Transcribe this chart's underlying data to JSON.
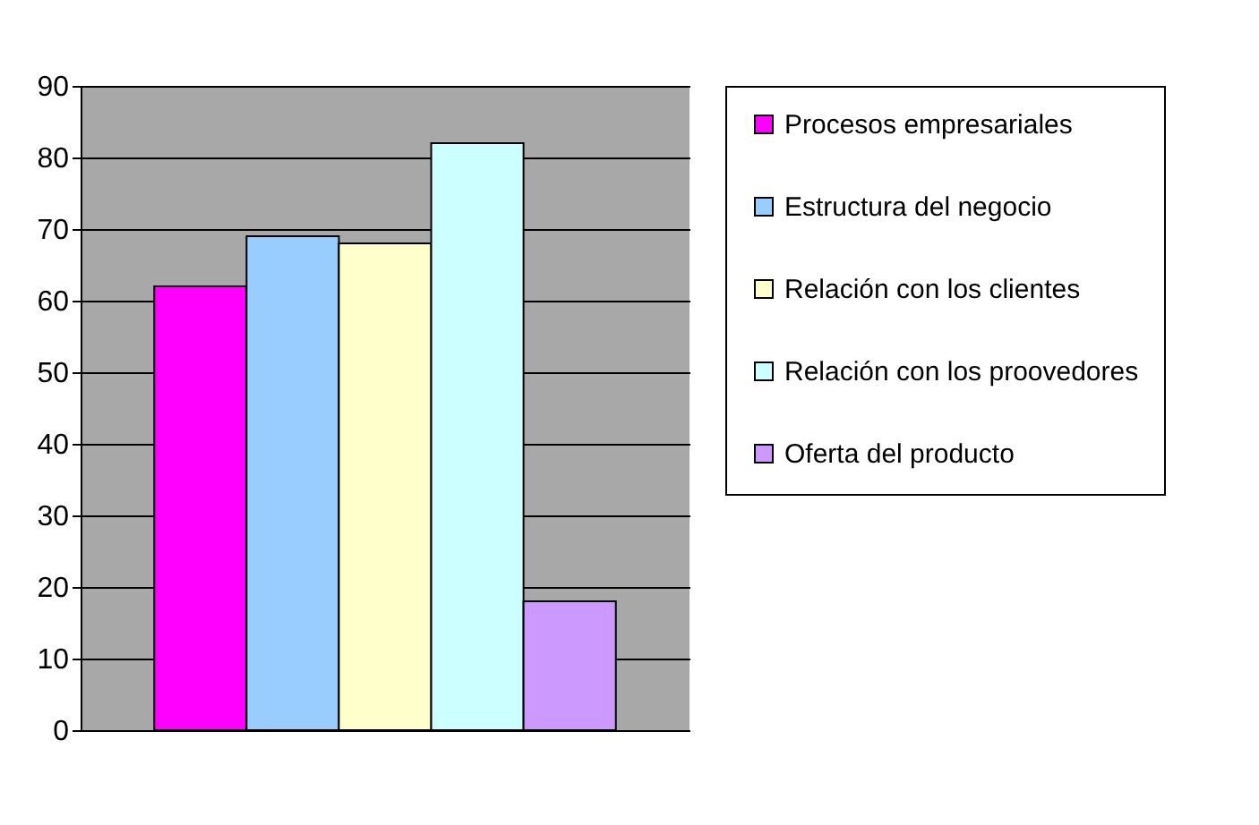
{
  "chart_data": {
    "type": "bar",
    "categories": [
      null
    ],
    "series": [
      {
        "name": "Procesos empresariales",
        "color": "#ff00ff",
        "values": [
          62
        ]
      },
      {
        "name": "Estructura del negocio",
        "color": "#99ccff",
        "values": [
          69
        ]
      },
      {
        "name": "Relación con los clientes",
        "color": "#ffffcc",
        "values": [
          68
        ]
      },
      {
        "name": "Relación con los proovedores",
        "color": "#ccffff",
        "values": [
          82
        ]
      },
      {
        "name": "Oferta del producto",
        "color": "#cc99ff",
        "values": [
          18
        ]
      }
    ],
    "ylim": [
      0,
      90
    ],
    "yticks": [
      0,
      10,
      20,
      30,
      40,
      50,
      60,
      70,
      80,
      90
    ],
    "grid": "y",
    "legend": "right",
    "tick_labels": "y"
  }
}
